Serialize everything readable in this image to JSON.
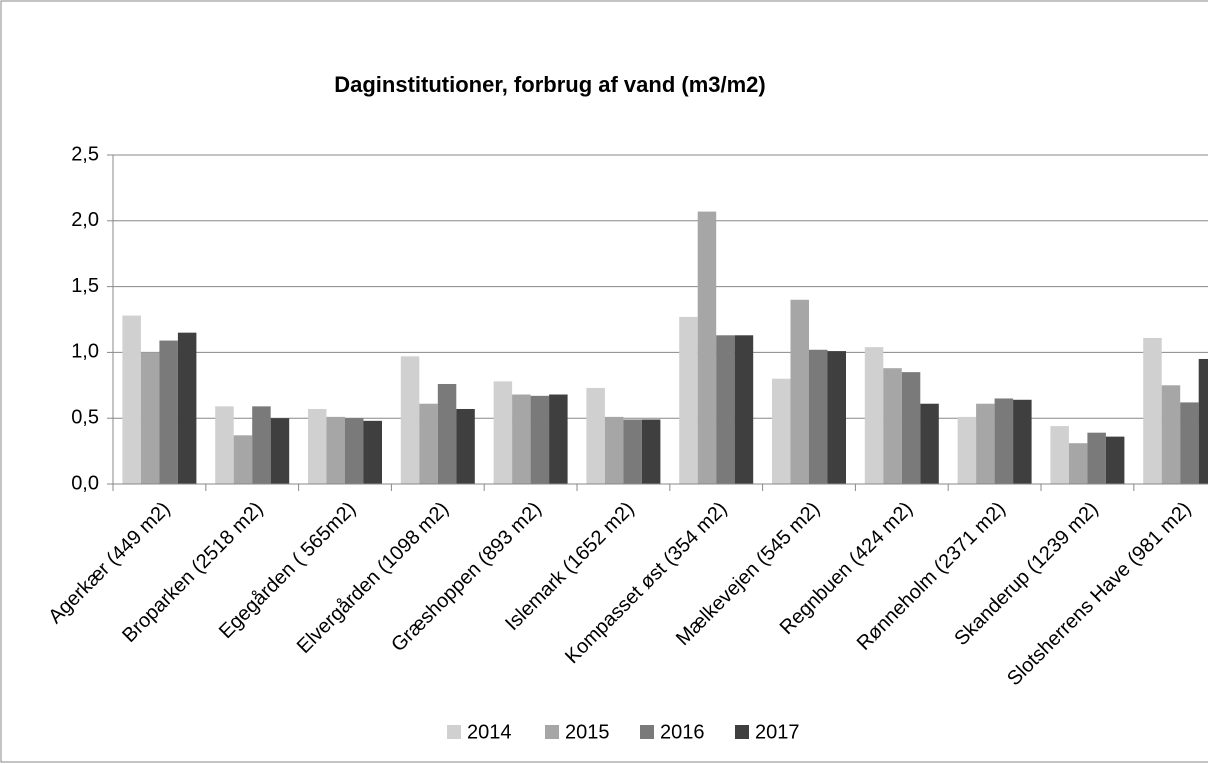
{
  "chart_data": {
    "type": "bar",
    "title": "Daginstitutioner, forbrug af vand (m3/m2)",
    "categories": [
      "Agerkær (449 m2)",
      "Broparken (2518 m2)",
      "Egegården ( 565m2)",
      "Elvergården (1098 m2)",
      "Græshoppen (893 m2)",
      "Islemark (1652 m2)",
      "Kompasset øst (354 m2)",
      "Mælkevejen (545 m2)",
      "Regnbuen (424 m2)",
      "Rønneholm (2371 m2)",
      "Skanderup (1239 m2)",
      "Slotsherrens Have (981 m2)"
    ],
    "series": [
      {
        "name": "2014",
        "color": "#d0d0d0",
        "values": [
          1.28,
          0.59,
          0.57,
          0.97,
          0.78,
          0.73,
          1.27,
          0.8,
          1.04,
          0.51,
          0.44,
          1.11
        ]
      },
      {
        "name": "2015",
        "color": "#a6a6a6",
        "values": [
          1.0,
          0.37,
          0.51,
          0.61,
          0.68,
          0.51,
          2.07,
          1.4,
          0.88,
          0.61,
          0.31,
          0.75
        ]
      },
      {
        "name": "2016",
        "color": "#7a7a7a",
        "values": [
          1.09,
          0.59,
          0.5,
          0.76,
          0.67,
          0.49,
          1.13,
          1.02,
          0.85,
          0.65,
          0.39,
          0.62
        ]
      },
      {
        "name": "2017",
        "color": "#3f3f3f",
        "values": [
          1.15,
          0.5,
          0.48,
          0.57,
          0.68,
          0.49,
          1.13,
          1.01,
          0.61,
          0.64,
          0.36,
          0.95
        ]
      }
    ],
    "ylim": [
      0,
      2.5
    ],
    "yticks": [
      {
        "value": 0,
        "label": "0,0"
      },
      {
        "value": 0.5,
        "label": "0,5"
      },
      {
        "value": 1,
        "label": "1,0"
      },
      {
        "value": 1.5,
        "label": "1,5"
      },
      {
        "value": 2,
        "label": "2,0"
      },
      {
        "value": 2.5,
        "label": "2,5"
      }
    ],
    "grid": true,
    "legend": "bottom"
  }
}
